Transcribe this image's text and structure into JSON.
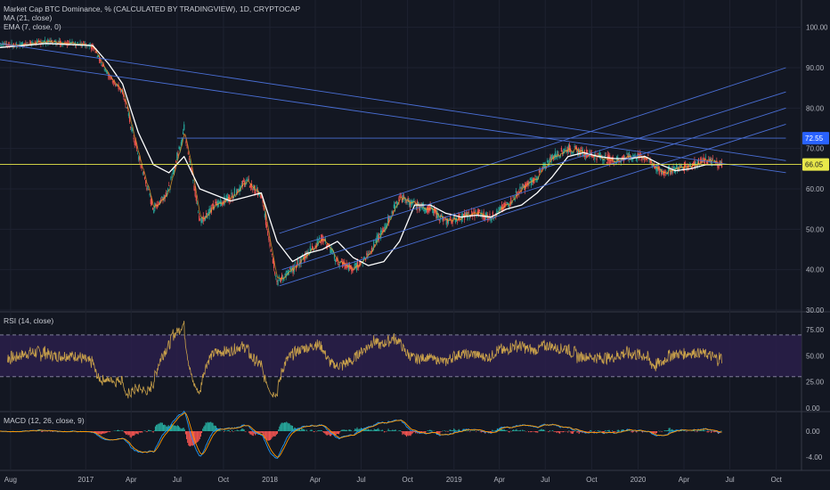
{
  "legend": {
    "title": "Market Cap BTC Dominance, % (CALCULATED BY TRADINGVIEW), 1D, CRYPTOCAP",
    "ma": "MA (21, close)",
    "ema": "EMA (7, close, 0)",
    "rsi": "RSI (14, close)",
    "macd": "MACD (12, 26, close, 9)"
  },
  "colors": {
    "background": "#131722",
    "grid": "#1e2230",
    "candle_up": "#26a69a",
    "candle_down": "#ef5350",
    "ma": "#ffffff",
    "ema": "#ffa726",
    "trendline": "#4a6fd6",
    "horizontal_line": "#e8e84a",
    "rsi_line": "#c9a14a",
    "rsi_band": "#2a1f4a",
    "macd_line": "#2196f3",
    "signal_line": "#ff9800",
    "hist_up": "#26a69a",
    "hist_down": "#ef5350",
    "badge_blue": "#2962ff",
    "badge_yellow": "#e8e84a"
  },
  "chart_data": [
    {
      "type": "candlestick",
      "title": "Market Cap BTC Dominance, % (CALCULATED BY TRADINGVIEW), 1D, CRYPTOCAP",
      "ylim": [
        30,
        105
      ],
      "y_ticks": [
        "100.00",
        "90.00",
        "80.00",
        "70.00",
        "60.00",
        "50.00",
        "40.00",
        "30.00"
      ],
      "x_ticks": [
        "Aug",
        "2017",
        "Apr",
        "Jul",
        "Oct",
        "2018",
        "Apr",
        "Jul",
        "Oct",
        "2019",
        "Apr",
        "Jul",
        "Oct",
        "2020",
        "Apr",
        "Jul",
        "Oct"
      ],
      "price_badges": [
        {
          "value": 72.55,
          "label": "72.55"
        },
        {
          "value": 66.05,
          "label": "66.05"
        }
      ],
      "series": [
        {
          "name": "price",
          "x": [
            "2016-07",
            "2016-08",
            "2016-10",
            "2016-12",
            "2017-01",
            "2017-02",
            "2017-03",
            "2017-04",
            "2017-05",
            "2017-06",
            "2017-07",
            "2017-08",
            "2017-09",
            "2017-10",
            "2017-11",
            "2017-12",
            "2018-01",
            "2018-02",
            "2018-03",
            "2018-04",
            "2018-05",
            "2018-06",
            "2018-07",
            "2018-08",
            "2018-09",
            "2018-10",
            "2018-11",
            "2018-12",
            "2019-01",
            "2019-02",
            "2019-03",
            "2019-04",
            "2019-05",
            "2019-06",
            "2019-07",
            "2019-08",
            "2019-09",
            "2019-10",
            "2019-11",
            "2019-12",
            "2020-01",
            "2020-02",
            "2020-03",
            "2020-04",
            "2020-05",
            "2020-06"
          ],
          "values": [
            96,
            95.5,
            96.5,
            96,
            95,
            88,
            84,
            68,
            55,
            60,
            75,
            52,
            56,
            58,
            62,
            58,
            37,
            40,
            44,
            48,
            42,
            40,
            44,
            50,
            58,
            56,
            55,
            52,
            53,
            54,
            53,
            56,
            60,
            63,
            68,
            70,
            69,
            68,
            67,
            68,
            68,
            64,
            65,
            66,
            67,
            66.05
          ]
        },
        {
          "name": "MA (21, close)",
          "x": [
            "2016-07",
            "2016-10",
            "2017-01",
            "2017-02",
            "2017-03",
            "2017-04",
            "2017-05",
            "2017-06",
            "2017-07",
            "2017-08",
            "2017-10",
            "2017-11",
            "2017-12",
            "2018-01",
            "2018-02",
            "2018-03",
            "2018-04",
            "2018-05",
            "2018-06",
            "2018-07",
            "2018-08",
            "2018-09",
            "2018-10",
            "2018-11",
            "2018-12",
            "2019-01",
            "2019-02",
            "2019-03",
            "2019-04",
            "2019-05",
            "2019-06",
            "2019-07",
            "2019-08",
            "2019-09",
            "2019-10",
            "2019-11",
            "2019-12",
            "2020-01",
            "2020-02",
            "2020-03",
            "2020-04",
            "2020-05",
            "2020-06"
          ],
          "values": [
            95,
            96,
            95.5,
            91,
            86,
            74,
            66,
            64,
            68,
            60,
            57,
            58,
            59,
            47,
            42,
            44,
            45,
            47,
            43,
            41,
            42,
            47,
            56,
            56,
            54,
            53,
            53.5,
            53,
            55,
            56,
            59,
            63,
            68,
            69,
            68,
            67.5,
            67.5,
            68,
            66,
            64.5,
            65,
            66,
            66
          ]
        },
        {
          "name": "RSI (14, close)",
          "ylim": [
            0,
            87
          ],
          "y_ticks": [
            "75.00",
            "50.00",
            "25.00",
            "0.00"
          ],
          "bands": [
            30,
            70
          ]
        },
        {
          "name": "MACD (12, 26, close, 9)",
          "ylim": [
            -5.5,
            2.2
          ],
          "y_ticks": [
            "0.00",
            "-4.00"
          ]
        }
      ]
    }
  ]
}
